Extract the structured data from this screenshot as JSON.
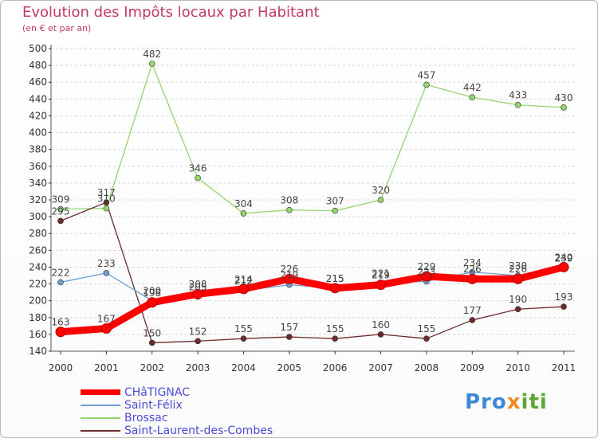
{
  "title": "Evolution des Impôts locaux par Habitant",
  "subtitle": "(en € et par an)",
  "logo": "Proxiti",
  "chart_data": {
    "type": "line",
    "categories": [
      "2000",
      "2001",
      "2002",
      "2003",
      "2004",
      "2005",
      "2006",
      "2007",
      "2008",
      "2009",
      "2010",
      "2011"
    ],
    "ylim": [
      140,
      500
    ],
    "yticks": [
      140,
      160,
      180,
      200,
      220,
      240,
      260,
      280,
      300,
      320,
      340,
      360,
      380,
      400,
      420,
      440,
      460,
      480,
      500
    ],
    "grid": "horizontal dashed",
    "legend": "bottom-left",
    "series": [
      {
        "name": "CHâTIGNAC",
        "color": "#ff0000",
        "values": [
          163,
          167,
          198,
          208,
          214,
          226,
          215,
          219,
          229,
          226,
          226,
          240
        ],
        "show_labels": true
      },
      {
        "name": "Saint-Félix",
        "color": "#6e9fd2",
        "values": [
          222,
          233,
          200,
          205,
          212,
          219,
          215,
          221,
          223,
          234,
          230,
          239
        ],
        "show_labels": true
      },
      {
        "name": "Brossac",
        "color": "#96d46e",
        "values": [
          309,
          310,
          482,
          346,
          304,
          308,
          307,
          320,
          457,
          442,
          433,
          430
        ],
        "show_labels": true
      },
      {
        "name": "Saint-Laurent-des-Combes",
        "color": "#6b2b2b",
        "values": [
          295,
          317,
          150,
          152,
          155,
          157,
          155,
          160,
          155,
          177,
          190,
          193
        ],
        "show_labels": true
      }
    ]
  }
}
